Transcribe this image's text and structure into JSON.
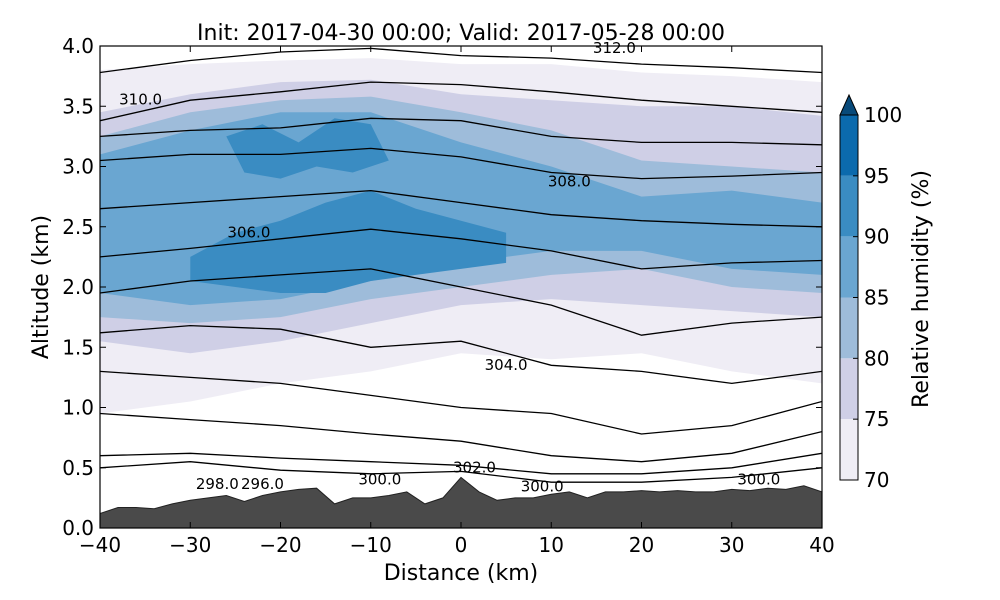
{
  "chart_data": {
    "type": "contour",
    "title": "Init: 2017-04-30 00:00; Valid: 2017-05-28 00:00",
    "xlabel": "Distance (km)",
    "ylabel": "Altitude (km)",
    "xlim": [
      -40,
      40
    ],
    "ylim": [
      0.0,
      4.0
    ],
    "x_ticks": [
      "−40",
      "−30",
      "−20",
      "−10",
      "0",
      "10",
      "20",
      "30",
      "40"
    ],
    "x_tick_values": [
      -40,
      -30,
      -20,
      -10,
      0,
      10,
      20,
      30,
      40
    ],
    "y_ticks": [
      "0.0",
      "0.5",
      "1.0",
      "1.5",
      "2.0",
      "2.5",
      "3.0",
      "3.5",
      "4.0"
    ],
    "y_tick_values": [
      0.0,
      0.5,
      1.0,
      1.5,
      2.0,
      2.5,
      3.0,
      3.5,
      4.0
    ],
    "colorbar": {
      "label": "Relative humidity (%)",
      "levels": [
        70,
        75,
        80,
        85,
        90,
        95,
        100
      ],
      "tick_labels": [
        "70",
        "75",
        "80",
        "85",
        "90",
        "95",
        "100"
      ],
      "colors": [
        "#efedf5",
        "#cfcfe6",
        "#9ebcda",
        "#6aa6d1",
        "#3a8cc2",
        "#0b6aad",
        "#084a7a"
      ],
      "extend": "max"
    },
    "terrain": {
      "color": "#4a4a4a",
      "x": [
        -40,
        -38,
        -36,
        -34,
        -32,
        -30,
        -28,
        -26,
        -24,
        -22,
        -20,
        -18,
        -16,
        -14,
        -12,
        -10,
        -8,
        -6,
        -4,
        -2,
        0,
        2,
        4,
        6,
        8,
        10,
        12,
        14,
        16,
        18,
        20,
        22,
        24,
        26,
        28,
        30,
        32,
        34,
        36,
        38,
        40
      ],
      "y": [
        0.12,
        0.17,
        0.17,
        0.16,
        0.2,
        0.23,
        0.25,
        0.27,
        0.22,
        0.27,
        0.3,
        0.32,
        0.33,
        0.2,
        0.25,
        0.25,
        0.27,
        0.3,
        0.2,
        0.25,
        0.42,
        0.3,
        0.23,
        0.25,
        0.25,
        0.28,
        0.3,
        0.25,
        0.3,
        0.3,
        0.31,
        0.3,
        0.31,
        0.3,
        0.3,
        0.32,
        0.31,
        0.33,
        0.32,
        0.35,
        0.3
      ]
    },
    "rh_regions": [
      {
        "level": 70,
        "x": [
          -40,
          -30,
          -20,
          -10,
          0,
          10,
          20,
          30,
          40,
          40,
          30,
          20,
          10,
          0,
          -10,
          -20,
          -30,
          -40
        ],
        "y": [
          3.8,
          3.85,
          3.88,
          3.9,
          3.85,
          3.85,
          3.78,
          3.75,
          3.7,
          1.2,
          1.3,
          1.45,
          1.4,
          1.45,
          1.3,
          1.2,
          1.05,
          0.95
        ]
      },
      {
        "level": 75,
        "x": [
          -40,
          -30,
          -20,
          -10,
          0,
          10,
          20,
          30,
          40,
          40,
          30,
          20,
          10,
          0,
          -10,
          -20,
          -30,
          -40
        ],
        "y": [
          3.45,
          3.6,
          3.7,
          3.72,
          3.6,
          3.55,
          3.5,
          3.5,
          3.42,
          1.75,
          1.8,
          1.85,
          1.9,
          1.85,
          1.7,
          1.55,
          1.45,
          1.55
        ]
      },
      {
        "level": 80,
        "x": [
          -40,
          -30,
          -20,
          -10,
          0,
          10,
          20,
          30,
          40,
          40,
          30,
          20,
          10,
          0,
          -10,
          -20,
          -30,
          -40
        ],
        "y": [
          3.25,
          3.45,
          3.55,
          3.58,
          3.45,
          3.3,
          3.05,
          3.0,
          2.95,
          1.95,
          2.0,
          2.15,
          2.1,
          2.0,
          1.9,
          1.75,
          1.7,
          1.75
        ]
      },
      {
        "level": 85,
        "x": [
          -40,
          -30,
          -20,
          -10,
          0,
          10,
          20,
          30,
          40,
          40,
          30,
          20,
          10,
          0,
          -10,
          -20,
          -30,
          -40
        ],
        "y": [
          3.1,
          3.3,
          3.45,
          3.45,
          3.2,
          3.0,
          2.75,
          2.8,
          2.7,
          2.1,
          2.15,
          2.3,
          2.3,
          2.2,
          2.05,
          1.9,
          1.85,
          1.95
        ]
      },
      {
        "level": 90,
        "x": [
          -30,
          -25,
          -20,
          -15,
          -10,
          -5,
          0,
          5,
          5,
          0,
          -5,
          -10,
          -15,
          -20,
          -25,
          -30
        ],
        "y": [
          2.25,
          2.45,
          2.55,
          2.7,
          2.8,
          2.65,
          2.55,
          2.45,
          2.2,
          2.15,
          2.1,
          2.05,
          1.95,
          1.95,
          2.0,
          2.05
        ]
      },
      {
        "level": 90,
        "x": [
          -26,
          -22,
          -18,
          -14,
          -10,
          -8,
          -12,
          -16,
          -20,
          -24
        ],
        "y": [
          3.25,
          3.35,
          3.2,
          3.4,
          3.35,
          3.05,
          2.95,
          3.0,
          2.9,
          2.95
        ]
      }
    ],
    "theta_contours": [
      {
        "x": [
          -40,
          -30,
          -20,
          -10,
          0,
          10,
          20,
          30,
          40
        ],
        "y": [
          3.78,
          3.88,
          3.95,
          3.98,
          3.92,
          3.9,
          3.85,
          3.82,
          3.78
        ]
      },
      {
        "x": [
          -40,
          -30,
          -20,
          -10,
          0,
          10,
          20,
          30,
          40
        ],
        "y": [
          3.38,
          3.55,
          3.62,
          3.7,
          3.68,
          3.62,
          3.55,
          3.5,
          3.45
        ]
      },
      {
        "x": [
          -40,
          -30,
          -20,
          -10,
          0,
          10,
          20,
          30,
          40
        ],
        "y": [
          3.25,
          3.3,
          3.32,
          3.4,
          3.38,
          3.25,
          3.2,
          3.2,
          3.18
        ]
      },
      {
        "x": [
          -40,
          -30,
          -20,
          -10,
          0,
          10,
          20,
          30,
          40
        ],
        "y": [
          3.05,
          3.1,
          3.1,
          3.15,
          3.08,
          2.95,
          2.9,
          2.92,
          2.95
        ]
      },
      {
        "x": [
          -40,
          -30,
          -20,
          -10,
          0,
          10,
          20,
          30,
          40
        ],
        "y": [
          2.65,
          2.7,
          2.75,
          2.8,
          2.7,
          2.6,
          2.55,
          2.52,
          2.5
        ]
      },
      {
        "x": [
          -40,
          -30,
          -20,
          -10,
          0,
          10,
          20,
          30,
          40
        ],
        "y": [
          2.25,
          2.32,
          2.4,
          2.48,
          2.4,
          2.3,
          2.15,
          2.2,
          2.22
        ]
      },
      {
        "x": [
          -40,
          -30,
          -20,
          -10,
          0,
          10,
          20,
          30,
          40
        ],
        "y": [
          1.95,
          2.05,
          2.1,
          2.15,
          2.0,
          1.85,
          1.6,
          1.7,
          1.75
        ]
      },
      {
        "x": [
          -40,
          -30,
          -20,
          -10,
          0,
          10,
          20,
          30,
          40
        ],
        "y": [
          1.62,
          1.68,
          1.65,
          1.5,
          1.55,
          1.35,
          1.3,
          1.2,
          1.3
        ]
      },
      {
        "x": [
          -40,
          -30,
          -20,
          -10,
          0,
          10,
          20,
          30,
          40
        ],
        "y": [
          1.3,
          1.25,
          1.2,
          1.1,
          1.0,
          0.95,
          0.78,
          0.85,
          1.05
        ]
      },
      {
        "x": [
          -40,
          -30,
          -20,
          -10,
          0,
          10,
          20,
          30,
          40
        ],
        "y": [
          0.95,
          0.9,
          0.85,
          0.78,
          0.72,
          0.6,
          0.55,
          0.62,
          0.8
        ]
      },
      {
        "x": [
          -40,
          -30,
          -20,
          -10,
          0,
          10,
          20,
          30,
          40
        ],
        "y": [
          0.6,
          0.62,
          0.58,
          0.55,
          0.52,
          0.45,
          0.45,
          0.5,
          0.62
        ]
      },
      {
        "x": [
          -40,
          -30,
          -20,
          -10,
          0,
          10,
          20,
          30,
          40
        ],
        "y": [
          0.5,
          0.55,
          0.48,
          0.45,
          0.47,
          0.38,
          0.38,
          0.42,
          0.5
        ]
      }
    ],
    "contour_labels": [
      {
        "text": "312.0",
        "x": 17.0,
        "y": 3.98
      },
      {
        "text": "310.0",
        "x": -35.5,
        "y": 3.55
      },
      {
        "text": "308.0",
        "x": 12.0,
        "y": 2.87
      },
      {
        "text": "306.0",
        "x": -23.5,
        "y": 2.45
      },
      {
        "text": "304.0",
        "x": 5.0,
        "y": 1.35
      },
      {
        "text": "302.0",
        "x": 1.5,
        "y": 0.5
      },
      {
        "text": "300.0",
        "x": -9.0,
        "y": 0.4
      },
      {
        "text": "300.0",
        "x": 9.0,
        "y": 0.34
      },
      {
        "text": "300.0",
        "x": 33.0,
        "y": 0.4
      },
      {
        "text": "298.0",
        "x": -27.0,
        "y": 0.36
      },
      {
        "text": "296.0",
        "x": -22.0,
        "y": 0.36
      }
    ]
  }
}
